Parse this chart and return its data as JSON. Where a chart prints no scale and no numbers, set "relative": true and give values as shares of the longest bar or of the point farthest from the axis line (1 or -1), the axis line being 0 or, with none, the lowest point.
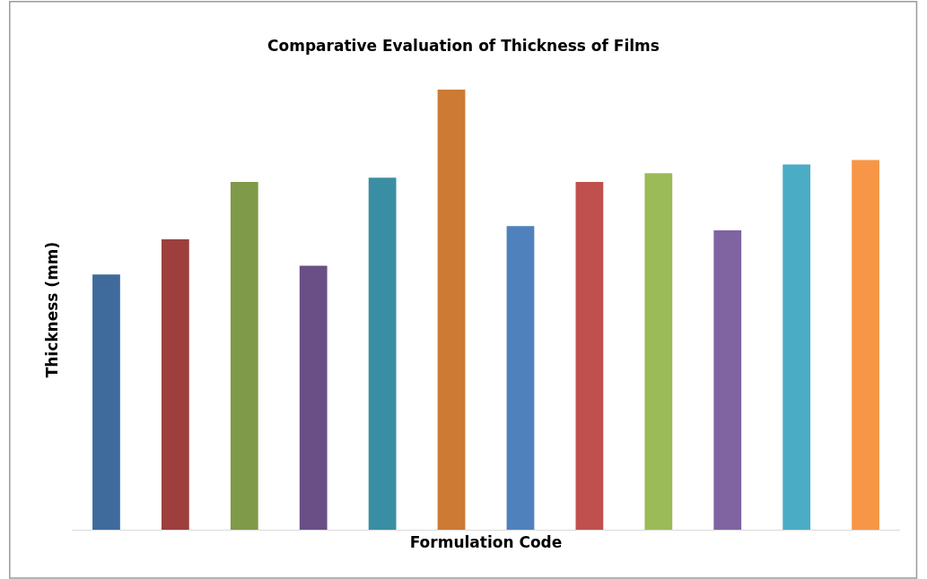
{
  "chart_data": {
    "type": "bar",
    "title": "Comparative Evaluation of Thickness of Films",
    "xlabel": "Formulation Code",
    "ylabel": "Thickness (mm)",
    "relative": true,
    "categories": [
      null,
      null,
      null,
      null,
      null,
      null,
      null,
      null,
      null,
      null,
      null,
      null
    ],
    "values": [
      0.58,
      0.66,
      0.79,
      0.6,
      0.8,
      1,
      0.69,
      0.79,
      0.81,
      0.68,
      0.83,
      0.84
    ],
    "colors": [
      "#3e6a9c",
      "#9c3f3d",
      "#7f9a48",
      "#6a4f86",
      "#3a8ea3",
      "#cc7a34",
      "#4f81bd",
      "#c0504d",
      "#9bbb59",
      "#8064a2",
      "#4bacc6",
      "#f79646"
    ],
    "grid": false
  }
}
